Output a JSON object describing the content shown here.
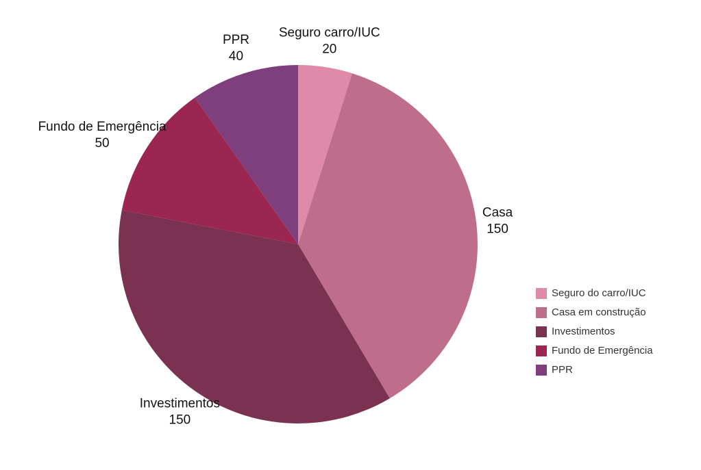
{
  "chart_data": {
    "type": "pie",
    "categories": [
      "Seguro do carro/IUC",
      "Casa em construção",
      "Investimentos",
      "Fundo de Emergência",
      "PPR"
    ],
    "labels": [
      "Seguro carro/IUC",
      "Casa",
      "Investimentos",
      "Fundo de Emergência",
      "PPR"
    ],
    "values": [
      20,
      150,
      150,
      50,
      40
    ],
    "colors": [
      "#df8aa8",
      "#be6e8a",
      "#7b3250",
      "#9b2652",
      "#7f3f7c"
    ],
    "legend": "right"
  }
}
